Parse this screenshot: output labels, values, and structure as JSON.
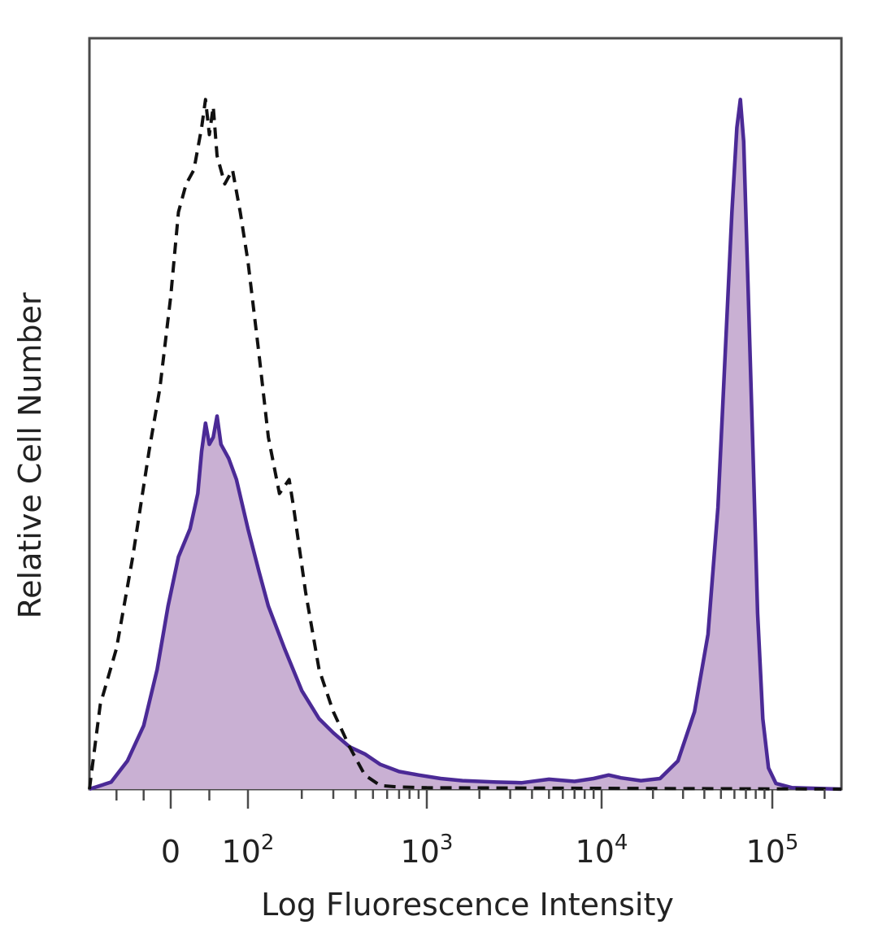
{
  "chart_data": {
    "type": "area",
    "title": "",
    "xlabel": "Log Fluorescence Intensity",
    "ylabel": "Relative Cell Number",
    "x_scale": "biexponential (log above ~100, linear near 0)",
    "xlim": [
      -150,
      250000
    ],
    "ylim": [
      0,
      100
    ],
    "grid": false,
    "legend": "none",
    "x_ticks": [
      {
        "value": 0,
        "base": "0",
        "exp": ""
      },
      {
        "value": 100,
        "base": "10",
        "exp": "2"
      },
      {
        "value": 1000,
        "base": "10",
        "exp": "3"
      },
      {
        "value": 10000,
        "base": "10",
        "exp": "4"
      },
      {
        "value": 100000,
        "base": "10",
        "exp": "5"
      }
    ],
    "series": [
      {
        "style": "dashed",
        "fill": false,
        "color": "#111111",
        "points": [
          [
            -150,
            0
          ],
          [
            -130,
            12
          ],
          [
            -100,
            20
          ],
          [
            -70,
            33
          ],
          [
            -40,
            48
          ],
          [
            -20,
            57
          ],
          [
            0,
            70
          ],
          [
            10,
            82
          ],
          [
            20,
            86
          ],
          [
            30,
            88
          ],
          [
            40,
            94
          ],
          [
            45,
            98
          ],
          [
            50,
            93
          ],
          [
            55,
            97
          ],
          [
            60,
            90
          ],
          [
            70,
            86
          ],
          [
            80,
            88
          ],
          [
            90,
            82
          ],
          [
            100,
            75
          ],
          [
            115,
            62
          ],
          [
            130,
            50
          ],
          [
            150,
            42
          ],
          [
            170,
            44
          ],
          [
            180,
            40
          ],
          [
            210,
            28
          ],
          [
            250,
            17
          ],
          [
            300,
            11
          ],
          [
            370,
            6
          ],
          [
            450,
            2
          ],
          [
            550,
            0.5
          ],
          [
            700,
            0.3
          ],
          [
            1000,
            0.2
          ],
          [
            250000,
            0
          ]
        ]
      },
      {
        "style": "solid",
        "fill": true,
        "color": "#4b2a96",
        "fill_color": "#c9b0d3",
        "points": [
          [
            -150,
            0
          ],
          [
            -110,
            1
          ],
          [
            -80,
            4
          ],
          [
            -50,
            9
          ],
          [
            -25,
            17
          ],
          [
            -5,
            26
          ],
          [
            10,
            33
          ],
          [
            25,
            37
          ],
          [
            35,
            42
          ],
          [
            40,
            48
          ],
          [
            45,
            52
          ],
          [
            50,
            49
          ],
          [
            55,
            50
          ],
          [
            60,
            53
          ],
          [
            65,
            49
          ],
          [
            75,
            47
          ],
          [
            85,
            44
          ],
          [
            100,
            37
          ],
          [
            115,
            31
          ],
          [
            130,
            26
          ],
          [
            160,
            20
          ],
          [
            200,
            14
          ],
          [
            250,
            10
          ],
          [
            300,
            8
          ],
          [
            370,
            6
          ],
          [
            450,
            5
          ],
          [
            550,
            3.5
          ],
          [
            700,
            2.5
          ],
          [
            900,
            2
          ],
          [
            1200,
            1.5
          ],
          [
            1600,
            1.2
          ],
          [
            2500,
            1
          ],
          [
            3500,
            0.9
          ],
          [
            5000,
            1.4
          ],
          [
            7000,
            1.1
          ],
          [
            9000,
            1.5
          ],
          [
            11000,
            2
          ],
          [
            13000,
            1.6
          ],
          [
            17000,
            1.2
          ],
          [
            22000,
            1.5
          ],
          [
            28000,
            4
          ],
          [
            35000,
            11
          ],
          [
            42000,
            22
          ],
          [
            48000,
            40
          ],
          [
            53000,
            62
          ],
          [
            58000,
            82
          ],
          [
            62000,
            94
          ],
          [
            65000,
            98
          ],
          [
            68000,
            92
          ],
          [
            72000,
            72
          ],
          [
            77000,
            48
          ],
          [
            82000,
            25
          ],
          [
            88000,
            10
          ],
          [
            95000,
            3
          ],
          [
            105000,
            0.8
          ],
          [
            130000,
            0.2
          ],
          [
            250000,
            0
          ]
        ]
      }
    ]
  }
}
